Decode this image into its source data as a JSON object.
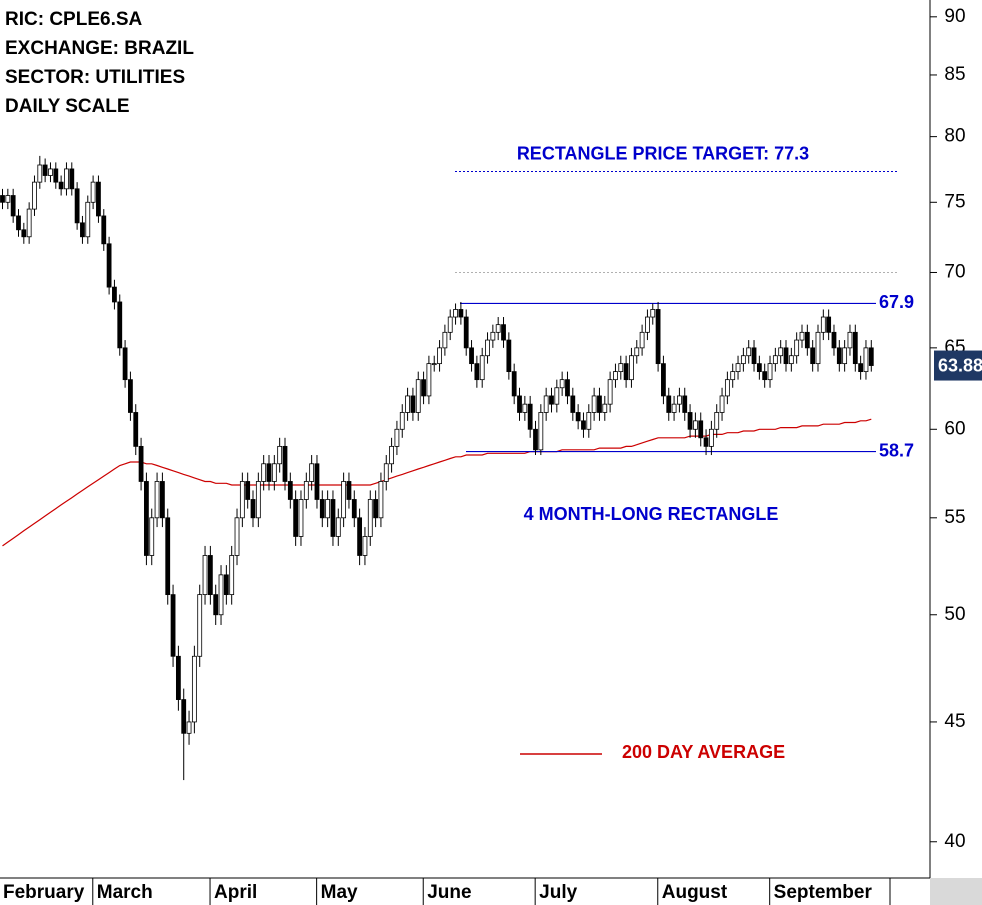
{
  "chart_data": {
    "type": "candlestick",
    "title_lines": [
      "RIC: CPLE6.SA",
      "EXCHANGE: BRAZIL",
      "SECTOR: UTILITIES",
      "DAILY SCALE"
    ],
    "log_scale": true,
    "ylim": [
      38.6,
      91.5
    ],
    "yticks": [
      40,
      45,
      50,
      55,
      60,
      65,
      70,
      75,
      80,
      85,
      90
    ],
    "up_color": "#ffffff",
    "down_color": "#000000",
    "categories": [
      "February",
      null,
      null,
      null,
      null,
      null,
      null,
      null,
      null,
      null,
      null,
      null,
      null,
      null,
      null,
      null,
      null,
      null,
      "March",
      null,
      null,
      null,
      null,
      null,
      null,
      null,
      null,
      null,
      null,
      null,
      null,
      null,
      null,
      null,
      null,
      null,
      null,
      null,
      null,
      null,
      "April",
      null,
      null,
      null,
      null,
      null,
      null,
      null,
      null,
      null,
      null,
      null,
      null,
      null,
      null,
      null,
      null,
      null,
      null,
      null,
      "May",
      null,
      null,
      null,
      null,
      null,
      null,
      null,
      null,
      null,
      null,
      null,
      null,
      null,
      null,
      null,
      null,
      null,
      null,
      null,
      "June",
      null,
      null,
      null,
      null,
      null,
      null,
      null,
      null,
      null,
      null,
      null,
      null,
      null,
      null,
      null,
      null,
      null,
      null,
      null,
      null,
      "July",
      null,
      null,
      null,
      null,
      null,
      null,
      null,
      null,
      null,
      null,
      null,
      null,
      null,
      null,
      null,
      null,
      null,
      null,
      null,
      null,
      null,
      null,
      "August",
      null,
      null,
      null,
      null,
      null,
      null,
      null,
      null,
      null,
      null,
      null,
      null,
      null,
      null,
      null,
      null,
      null,
      null,
      null,
      null,
      "September",
      null,
      null,
      null,
      null,
      null,
      null,
      null,
      null,
      null,
      null,
      null,
      null,
      null,
      null,
      null,
      null,
      null,
      null
    ],
    "ohlc": [
      [
        75.5,
        76,
        74.5,
        75
      ],
      [
        75,
        76,
        74.5,
        75.5
      ],
      [
        75.5,
        76,
        73.5,
        74
      ],
      [
        74,
        74.5,
        72.5,
        73
      ],
      [
        73,
        73.5,
        72,
        72.5
      ],
      [
        72.5,
        75,
        72,
        74.5
      ],
      [
        74.5,
        77,
        74,
        76.5
      ],
      [
        76.5,
        78.5,
        76,
        77.8
      ],
      [
        77.8,
        78.3,
        76.5,
        77
      ],
      [
        77,
        78,
        76.5,
        77.5
      ],
      [
        77.5,
        78,
        76,
        76.5
      ],
      [
        76.5,
        77,
        75.5,
        76
      ],
      [
        76,
        78,
        75.5,
        77.5
      ],
      [
        77.5,
        78,
        75.5,
        76
      ],
      [
        76,
        76.5,
        73,
        73.5
      ],
      [
        73.5,
        74,
        72,
        72.5
      ],
      [
        72.5,
        75.5,
        72,
        75
      ],
      [
        75,
        77,
        74.5,
        76.5
      ],
      [
        76.5,
        77,
        73.5,
        74
      ],
      [
        74,
        74.5,
        71.5,
        72
      ],
      [
        72,
        72.5,
        68.5,
        69
      ],
      [
        69,
        69.5,
        67.5,
        68
      ],
      [
        68,
        68.5,
        64.5,
        65
      ],
      [
        65,
        65.5,
        62.5,
        63
      ],
      [
        63,
        63.5,
        60.5,
        61
      ],
      [
        61,
        61.5,
        58.5,
        59
      ],
      [
        59,
        59.5,
        56.5,
        57
      ],
      [
        57,
        57.5,
        52.5,
        53
      ],
      [
        53,
        55.5,
        52.5,
        55
      ],
      [
        55,
        57.5,
        54.5,
        57
      ],
      [
        57,
        57.5,
        54.5,
        55
      ],
      [
        55,
        55.5,
        50.5,
        51
      ],
      [
        51,
        51.5,
        47.5,
        48
      ],
      [
        48,
        48.5,
        45.5,
        46
      ],
      [
        46,
        46.5,
        42.5,
        44.5
      ],
      [
        44.5,
        45.5,
        44,
        45
      ],
      [
        45,
        48.5,
        44.5,
        48
      ],
      [
        48,
        51.5,
        47.5,
        51
      ],
      [
        51,
        53.5,
        50.5,
        53
      ],
      [
        53,
        53.5,
        50.5,
        51
      ],
      [
        51,
        51.5,
        49.5,
        50
      ],
      [
        50,
        52.5,
        49.5,
        52
      ],
      [
        52,
        52.5,
        50.5,
        51
      ],
      [
        51,
        53.5,
        50.5,
        53
      ],
      [
        53,
        55.5,
        52.5,
        55
      ],
      [
        55,
        57.5,
        54.5,
        57
      ],
      [
        57,
        57.5,
        55.5,
        56
      ],
      [
        56,
        56.5,
        54.5,
        55
      ],
      [
        55,
        57.5,
        54.5,
        57
      ],
      [
        57,
        58.5,
        56.5,
        58
      ],
      [
        58,
        58.5,
        56.5,
        57
      ],
      [
        57,
        58.5,
        56.5,
        58
      ],
      [
        58,
        59.5,
        57.5,
        59
      ],
      [
        59,
        59.5,
        56.5,
        57
      ],
      [
        57,
        57.5,
        55.5,
        56
      ],
      [
        56,
        56.5,
        53.5,
        54
      ],
      [
        54,
        56.5,
        53.5,
        56
      ],
      [
        56,
        57.5,
        55.5,
        57
      ],
      [
        57,
        58.5,
        56.5,
        58
      ],
      [
        58,
        58.5,
        55.5,
        56
      ],
      [
        56,
        56.5,
        54.5,
        55
      ],
      [
        55,
        56.5,
        54.5,
        56
      ],
      [
        56,
        56.5,
        53.5,
        54
      ],
      [
        54,
        55.5,
        53.5,
        55
      ],
      [
        55,
        57.5,
        54.5,
        57
      ],
      [
        57,
        57.5,
        55.5,
        56
      ],
      [
        56,
        56.5,
        54.5,
        55
      ],
      [
        55,
        55.5,
        52.5,
        53
      ],
      [
        53,
        54.5,
        52.5,
        54
      ],
      [
        54,
        56.5,
        53.5,
        56
      ],
      [
        56,
        56.5,
        54.5,
        55
      ],
      [
        55,
        57.5,
        54.5,
        57
      ],
      [
        57,
        58.5,
        56.5,
        58
      ],
      [
        58,
        59.5,
        57.5,
        59
      ],
      [
        59,
        60.5,
        58.5,
        60
      ],
      [
        60,
        61.5,
        59.5,
        61
      ],
      [
        61,
        62.5,
        60.5,
        62
      ],
      [
        62,
        62.5,
        60.5,
        61
      ],
      [
        61,
        63.5,
        60.5,
        63
      ],
      [
        63,
        63.5,
        61.5,
        62
      ],
      [
        62,
        64.5,
        61.5,
        64
      ],
      [
        64,
        64.5,
        63.5,
        64
      ],
      [
        64,
        65.5,
        63.5,
        65
      ],
      [
        65,
        66.5,
        64.5,
        66
      ],
      [
        66,
        67.5,
        65.5,
        67
      ],
      [
        67,
        67.9,
        66.5,
        67.5
      ],
      [
        67.5,
        68,
        66.5,
        67
      ],
      [
        67,
        67.5,
        64.5,
        65
      ],
      [
        65,
        65.5,
        63.5,
        64
      ],
      [
        64,
        64.5,
        62.5,
        63
      ],
      [
        63,
        65,
        62.5,
        64.5
      ],
      [
        64.5,
        66,
        64,
        65.5
      ],
      [
        65.5,
        66.5,
        65,
        66
      ],
      [
        66,
        67,
        65.5,
        66.5
      ],
      [
        66.5,
        67,
        65,
        65.5
      ],
      [
        65.5,
        66,
        63,
        63.5
      ],
      [
        63.5,
        64,
        61.5,
        62
      ],
      [
        62,
        62.5,
        60.5,
        61
      ],
      [
        61,
        62,
        60.5,
        61.5
      ],
      [
        61.5,
        62,
        59.5,
        60
      ],
      [
        60,
        60.5,
        58.5,
        58.8
      ],
      [
        58.8,
        61.5,
        58.5,
        61
      ],
      [
        61,
        62.5,
        60.5,
        62
      ],
      [
        62,
        62.5,
        61,
        61.5
      ],
      [
        61.5,
        63,
        61,
        62.5
      ],
      [
        62.5,
        63.5,
        62,
        63
      ],
      [
        63,
        63.5,
        61.5,
        62
      ],
      [
        62,
        62.5,
        60.5,
        61
      ],
      [
        61,
        61.5,
        60,
        60.5
      ],
      [
        60.5,
        61,
        59.5,
        60
      ],
      [
        60,
        61.5,
        59.5,
        61
      ],
      [
        61,
        62.5,
        60.5,
        62
      ],
      [
        62,
        62.5,
        60.5,
        61
      ],
      [
        61,
        62,
        60.5,
        61.5
      ],
      [
        61.5,
        63.5,
        61,
        63
      ],
      [
        63,
        64,
        62.5,
        63.5
      ],
      [
        63.5,
        64.5,
        63,
        64
      ],
      [
        64,
        64.5,
        62.5,
        63
      ],
      [
        63,
        65,
        62.5,
        64.5
      ],
      [
        64.5,
        65.5,
        64,
        65
      ],
      [
        65,
        66.5,
        64.5,
        66
      ],
      [
        66,
        67.5,
        65.5,
        67
      ],
      [
        67,
        67.9,
        66.5,
        67.5
      ],
      [
        67.5,
        68,
        63.5,
        64
      ],
      [
        64,
        64.5,
        61.5,
        62
      ],
      [
        62,
        62.5,
        60.5,
        61
      ],
      [
        61,
        62,
        60.5,
        61.5
      ],
      [
        61.5,
        62.5,
        61,
        62
      ],
      [
        62,
        62.5,
        60.5,
        61
      ],
      [
        61,
        61.5,
        59.5,
        60
      ],
      [
        60,
        61,
        59.5,
        60.5
      ],
      [
        60.5,
        61,
        59,
        59.5
      ],
      [
        59.5,
        60,
        58.5,
        59
      ],
      [
        59,
        60.5,
        58.5,
        60
      ],
      [
        60,
        61.5,
        59.5,
        61
      ],
      [
        61,
        62.5,
        60.5,
        62
      ],
      [
        62,
        63.5,
        61.5,
        63
      ],
      [
        63,
        64,
        62.5,
        63.5
      ],
      [
        63.5,
        64.5,
        63,
        64
      ],
      [
        64,
        65,
        63.5,
        64.5
      ],
      [
        64.5,
        65.5,
        64,
        65
      ],
      [
        65,
        65.5,
        63.5,
        64
      ],
      [
        64,
        64.5,
        63,
        63.5
      ],
      [
        63.5,
        64,
        62.5,
        63
      ],
      [
        63,
        64.5,
        62.5,
        64
      ],
      [
        64,
        65,
        63.5,
        64.5
      ],
      [
        64.5,
        65.5,
        64,
        65
      ],
      [
        65,
        65.5,
        63.5,
        64
      ],
      [
        64,
        65,
        63.5,
        64.5
      ],
      [
        64.5,
        66,
        64,
        65.5
      ],
      [
        65.5,
        66.5,
        65,
        66
      ],
      [
        66,
        66.5,
        64.5,
        65
      ],
      [
        65,
        65.5,
        63.5,
        64
      ],
      [
        64,
        66.5,
        63.5,
        66
      ],
      [
        66,
        67.5,
        65.5,
        67
      ],
      [
        67,
        67.5,
        65.5,
        66
      ],
      [
        66,
        66.5,
        64.5,
        65
      ],
      [
        65,
        65.5,
        63.5,
        64
      ],
      [
        64,
        65.5,
        63.5,
        65
      ],
      [
        65,
        66.5,
        64.5,
        66
      ],
      [
        66,
        66.5,
        63.5,
        64
      ],
      [
        64,
        64.5,
        63,
        63.5
      ],
      [
        63.5,
        65.5,
        63,
        65
      ],
      [
        65,
        65.5,
        63.5,
        63.88
      ]
    ],
    "ma": {
      "name": "200 DAY AVERAGE",
      "color": "#cc0000",
      "values": [
        53.5,
        53.7,
        53.9,
        54.1,
        54.3,
        54.5,
        54.7,
        54.9,
        55.1,
        55.3,
        55.5,
        55.7,
        55.9,
        56.1,
        56.3,
        56.5,
        56.7,
        56.9,
        57.1,
        57.3,
        57.5,
        57.7,
        57.9,
        58.0,
        58.1,
        58.1,
        58.1,
        58.0,
        58.0,
        57.9,
        57.8,
        57.7,
        57.6,
        57.5,
        57.4,
        57.3,
        57.2,
        57.1,
        57.0,
        57.0,
        56.9,
        56.9,
        56.9,
        56.8,
        56.8,
        56.8,
        56.8,
        56.8,
        56.8,
        56.8,
        56.8,
        56.8,
        56.8,
        56.8,
        56.8,
        56.8,
        56.8,
        56.8,
        56.8,
        56.8,
        56.8,
        56.8,
        56.8,
        56.8,
        56.8,
        56.8,
        56.8,
        56.8,
        56.8,
        56.8,
        56.9,
        57.0,
        57.1,
        57.2,
        57.3,
        57.4,
        57.5,
        57.6,
        57.7,
        57.8,
        57.9,
        58.0,
        58.1,
        58.2,
        58.3,
        58.4,
        58.4,
        58.5,
        58.5,
        58.5,
        58.5,
        58.6,
        58.6,
        58.6,
        58.6,
        58.6,
        58.6,
        58.6,
        58.6,
        58.7,
        58.7,
        58.7,
        58.7,
        58.7,
        58.7,
        58.8,
        58.8,
        58.8,
        58.8,
        58.8,
        58.8,
        58.8,
        58.9,
        58.9,
        58.9,
        58.9,
        58.9,
        59.0,
        59.0,
        59.1,
        59.2,
        59.3,
        59.4,
        59.5,
        59.5,
        59.5,
        59.5,
        59.5,
        59.5,
        59.6,
        59.6,
        59.6,
        59.6,
        59.7,
        59.7,
        59.7,
        59.8,
        59.8,
        59.8,
        59.9,
        59.9,
        59.9,
        60.0,
        60.0,
        60.0,
        60.0,
        60.1,
        60.1,
        60.1,
        60.1,
        60.2,
        60.2,
        60.2,
        60.2,
        60.3,
        60.3,
        60.3,
        60.3,
        60.4,
        60.4,
        60.4,
        60.5,
        60.5,
        60.6
      ]
    },
    "levels": [
      {
        "value": 67.9,
        "color": "#0000cc"
      },
      {
        "value": 58.7,
        "color": "#0000cc"
      }
    ],
    "target": {
      "label": "RECTANGLE PRICE TARGET: 77.3",
      "value": 77.3,
      "color": "#0000cc"
    },
    "reference_line": {
      "value": 70,
      "color": "#b0b0b0"
    },
    "annotation": {
      "text": "4 MONTH-LONG RECTANGLE",
      "color": "#0000cc"
    },
    "price_box_color": "#1f3864"
  }
}
